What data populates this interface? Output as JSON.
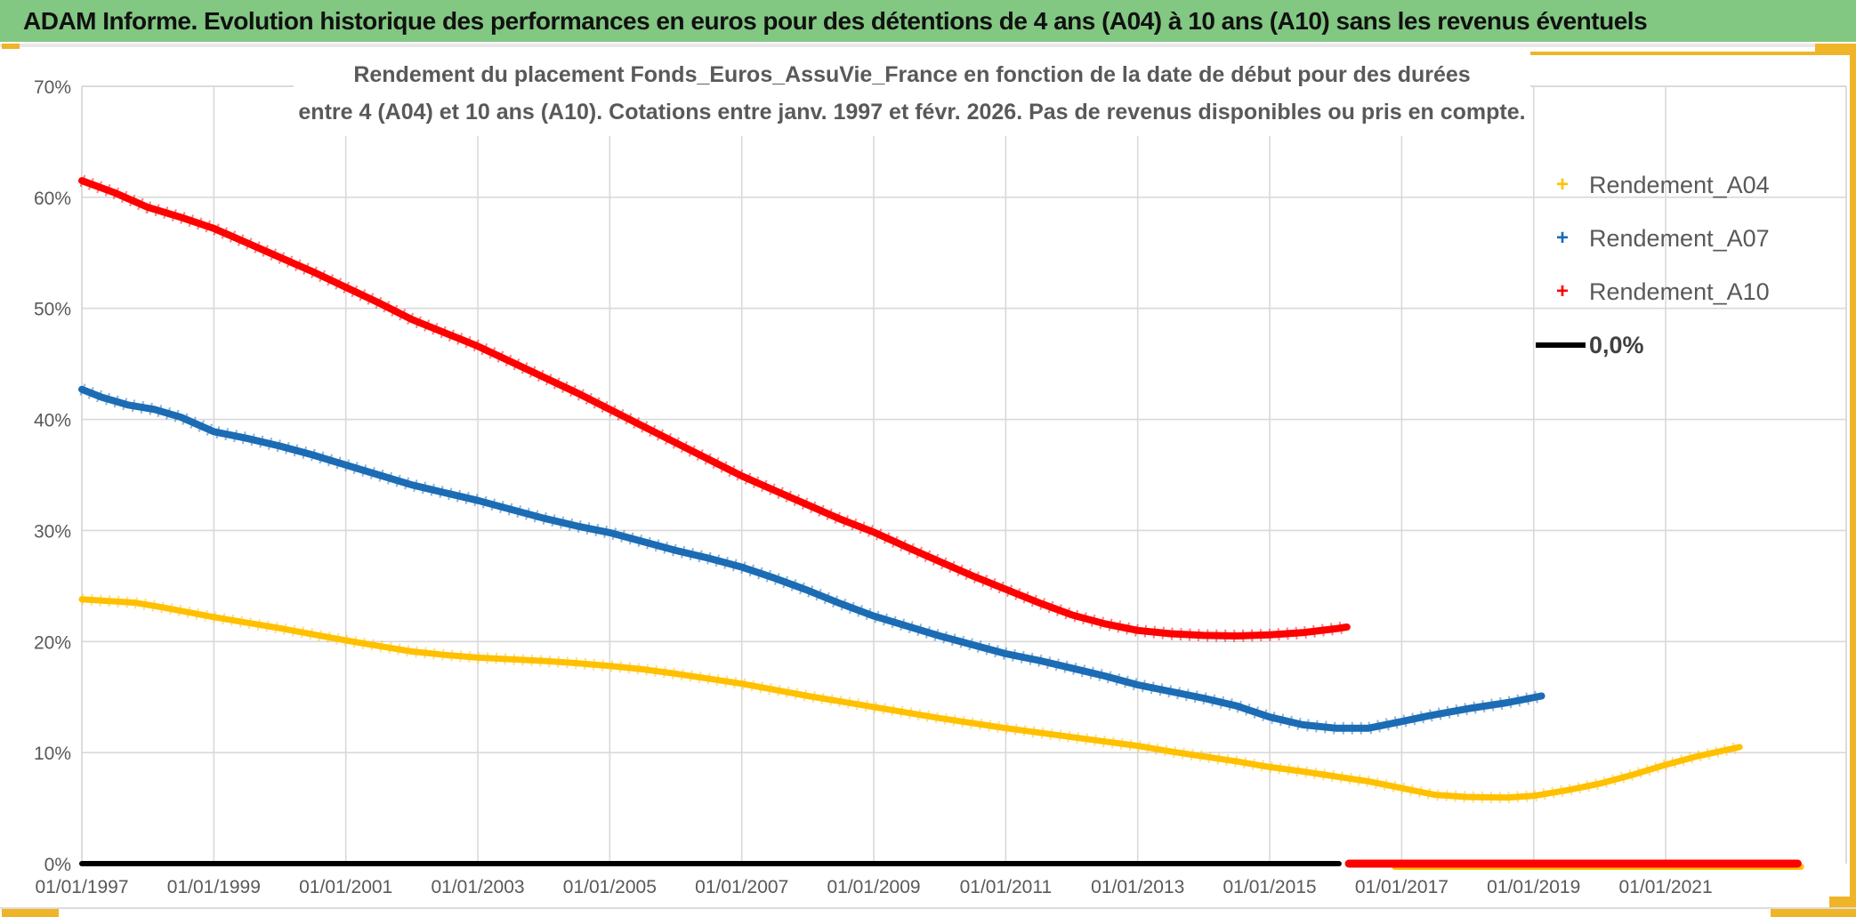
{
  "header": {
    "title": "ADAM Informe. Evolution historique des performances en euros pour des détentions de 4 ans (A04) à 10 ans (A10) sans les revenus éventuels",
    "bar_color": "#82C782"
  },
  "chart": {
    "title_line1": "Rendement du placement Fonds_Euros_AssuVie_France en fonction de la date de début pour des durées",
    "title_line2": "entre 4 (A04) et 10 ans (A10). Cotations entre janv. 1997 et févr. 2026. Pas de revenus disponibles ou pris en compte.",
    "title_color": "#595959"
  },
  "legend": {
    "items": [
      {
        "label": "Rendement_A04",
        "marker": "+",
        "color": "#FFC000"
      },
      {
        "label": "Rendement_A07",
        "marker": "+",
        "color": "#1B6CB5"
      },
      {
        "label": "Rendement_A10",
        "marker": "+",
        "color": "#FE0000"
      },
      {
        "label": "0,0%",
        "marker": "line",
        "color": "#000000"
      }
    ]
  },
  "colors": {
    "grid": "#D9D9D9",
    "axis_text": "#595959",
    "sheet_accent_gold": "#F0B429",
    "series_a04": "#FFC000",
    "series_a07": "#1B6CB5",
    "series_a10": "#FE0000",
    "zero_line": "#000000"
  },
  "chart_data": {
    "type": "line",
    "title": "Rendement du placement Fonds_Euros_AssuVie_France en fonction de la date de début pour des durées entre 4 (A04) et 10 ans (A10). Cotations entre janv. 1997 et févr. 2026. Pas de revenus disponibles ou pris en compte.",
    "grid": true,
    "legend_position": "right",
    "x_axis": {
      "min": 1997.0,
      "max": 2023.7,
      "ticks": [
        {
          "year": 1997,
          "label": "01/01/1997"
        },
        {
          "year": 1999,
          "label": "01/01/1999"
        },
        {
          "year": 2001,
          "label": "01/01/2001"
        },
        {
          "year": 2003,
          "label": "01/01/2003"
        },
        {
          "year": 2005,
          "label": "01/01/2005"
        },
        {
          "year": 2007,
          "label": "01/01/2007"
        },
        {
          "year": 2009,
          "label": "01/01/2009"
        },
        {
          "year": 2011,
          "label": "01/01/2011"
        },
        {
          "year": 2013,
          "label": "01/01/2013"
        },
        {
          "year": 2015,
          "label": "01/01/2015"
        },
        {
          "year": 2017,
          "label": "01/01/2017"
        },
        {
          "year": 2019,
          "label": "01/01/2019"
        },
        {
          "year": 2021,
          "label": "01/01/2021"
        }
      ]
    },
    "y_axis": {
      "min": 0,
      "max": 70,
      "unit": "%",
      "ticks": [
        {
          "value": 0,
          "label": "0%"
        },
        {
          "value": 10,
          "label": "10%"
        },
        {
          "value": 20,
          "label": "20%"
        },
        {
          "value": 30,
          "label": "30%"
        },
        {
          "value": 40,
          "label": "40%"
        },
        {
          "value": 50,
          "label": "50%"
        },
        {
          "value": 60,
          "label": "60%"
        },
        {
          "value": 70,
          "label": "70%"
        }
      ]
    },
    "series": [
      {
        "name": "Rendement_A04",
        "color": "#FFC000",
        "width": 7,
        "points": [
          [
            1997.0,
            23.8
          ],
          [
            1997.4,
            23.65
          ],
          [
            1997.8,
            23.5
          ],
          [
            1998.2,
            23.1
          ],
          [
            1998.6,
            22.65
          ],
          [
            1999.0,
            22.2
          ],
          [
            1999.5,
            21.7
          ],
          [
            2000.0,
            21.2
          ],
          [
            2000.5,
            20.65
          ],
          [
            2001.0,
            20.1
          ],
          [
            2001.5,
            19.6
          ],
          [
            2002.0,
            19.1
          ],
          [
            2002.5,
            18.8
          ],
          [
            2003.0,
            18.55
          ],
          [
            2003.5,
            18.4
          ],
          [
            2004.0,
            18.25
          ],
          [
            2004.5,
            18.05
          ],
          [
            2005.0,
            17.8
          ],
          [
            2005.5,
            17.5
          ],
          [
            2006.0,
            17.1
          ],
          [
            2006.5,
            16.65
          ],
          [
            2007.0,
            16.2
          ],
          [
            2007.5,
            15.65
          ],
          [
            2008.0,
            15.1
          ],
          [
            2008.5,
            14.6
          ],
          [
            2009.0,
            14.1
          ],
          [
            2009.5,
            13.6
          ],
          [
            2010.0,
            13.1
          ],
          [
            2010.5,
            12.65
          ],
          [
            2011.0,
            12.2
          ],
          [
            2011.5,
            11.8
          ],
          [
            2012.0,
            11.4
          ],
          [
            2012.5,
            11.0
          ],
          [
            2013.0,
            10.6
          ],
          [
            2013.5,
            10.1
          ],
          [
            2014.0,
            9.65
          ],
          [
            2014.5,
            9.2
          ],
          [
            2015.0,
            8.7
          ],
          [
            2015.5,
            8.3
          ],
          [
            2016.0,
            7.85
          ],
          [
            2016.5,
            7.4
          ],
          [
            2017.0,
            6.8
          ],
          [
            2017.5,
            6.2
          ],
          [
            2018.0,
            6.0
          ],
          [
            2018.6,
            5.95
          ],
          [
            2019.0,
            6.1
          ],
          [
            2019.5,
            6.6
          ],
          [
            2020.0,
            7.2
          ],
          [
            2020.5,
            8.0
          ],
          [
            2021.0,
            8.9
          ],
          [
            2021.5,
            9.7
          ],
          [
            2022.12,
            10.5
          ]
        ]
      },
      {
        "name": "Rendement_A07",
        "color": "#1B6CB5",
        "width": 8,
        "points": [
          [
            1997.0,
            42.7
          ],
          [
            1997.3,
            42.0
          ],
          [
            1997.7,
            41.3
          ],
          [
            1998.1,
            40.9
          ],
          [
            1998.5,
            40.2
          ],
          [
            1999.0,
            38.9
          ],
          [
            1999.5,
            38.3
          ],
          [
            2000.0,
            37.6
          ],
          [
            2000.5,
            36.8
          ],
          [
            2001.0,
            35.9
          ],
          [
            2001.5,
            35.0
          ],
          [
            2002.0,
            34.1
          ],
          [
            2002.5,
            33.4
          ],
          [
            2003.0,
            32.7
          ],
          [
            2003.5,
            31.9
          ],
          [
            2004.0,
            31.1
          ],
          [
            2004.5,
            30.4
          ],
          [
            2005.0,
            29.8
          ],
          [
            2005.5,
            29.0
          ],
          [
            2006.0,
            28.2
          ],
          [
            2006.5,
            27.5
          ],
          [
            2007.0,
            26.7
          ],
          [
            2007.5,
            25.7
          ],
          [
            2008.0,
            24.6
          ],
          [
            2008.5,
            23.4
          ],
          [
            2009.0,
            22.3
          ],
          [
            2009.5,
            21.4
          ],
          [
            2010.0,
            20.5
          ],
          [
            2010.5,
            19.7
          ],
          [
            2011.0,
            18.9
          ],
          [
            2011.5,
            18.3
          ],
          [
            2012.0,
            17.6
          ],
          [
            2012.5,
            16.9
          ],
          [
            2013.0,
            16.1
          ],
          [
            2013.5,
            15.5
          ],
          [
            2014.0,
            14.9
          ],
          [
            2014.5,
            14.2
          ],
          [
            2015.0,
            13.2
          ],
          [
            2015.5,
            12.5
          ],
          [
            2016.0,
            12.2
          ],
          [
            2016.5,
            12.2
          ],
          [
            2017.0,
            12.8
          ],
          [
            2017.4,
            13.3
          ],
          [
            2018.0,
            13.95
          ],
          [
            2018.6,
            14.5
          ],
          [
            2019.12,
            15.1
          ]
        ]
      },
      {
        "name": "Rendement_A10",
        "color": "#FE0000",
        "width": 8,
        "points": [
          [
            1997.0,
            61.5
          ],
          [
            1997.5,
            60.4
          ],
          [
            1998.0,
            59.1
          ],
          [
            1998.5,
            58.2
          ],
          [
            1999.0,
            57.2
          ],
          [
            1999.5,
            55.9
          ],
          [
            2000.0,
            54.6
          ],
          [
            2000.5,
            53.3
          ],
          [
            2001.0,
            51.9
          ],
          [
            2001.5,
            50.5
          ],
          [
            2002.0,
            49.0
          ],
          [
            2002.5,
            47.8
          ],
          [
            2003.0,
            46.6
          ],
          [
            2003.5,
            45.2
          ],
          [
            2004.0,
            43.8
          ],
          [
            2004.5,
            42.4
          ],
          [
            2005.0,
            40.9
          ],
          [
            2005.5,
            39.4
          ],
          [
            2006.0,
            37.9
          ],
          [
            2006.5,
            36.4
          ],
          [
            2007.0,
            34.9
          ],
          [
            2007.5,
            33.6
          ],
          [
            2008.0,
            32.3
          ],
          [
            2008.5,
            31.0
          ],
          [
            2009.0,
            29.85
          ],
          [
            2009.5,
            28.5
          ],
          [
            2010.0,
            27.2
          ],
          [
            2010.5,
            25.9
          ],
          [
            2011.0,
            24.7
          ],
          [
            2011.5,
            23.5
          ],
          [
            2012.0,
            22.4
          ],
          [
            2012.5,
            21.6
          ],
          [
            2013.0,
            21.0
          ],
          [
            2013.5,
            20.7
          ],
          [
            2014.0,
            20.55
          ],
          [
            2014.5,
            20.5
          ],
          [
            2015.0,
            20.6
          ],
          [
            2015.5,
            20.8
          ],
          [
            2016.0,
            21.15
          ],
          [
            2016.17,
            21.3
          ]
        ]
      },
      {
        "name": "0,0%",
        "color": "#000000",
        "width": 6,
        "points": [
          [
            1997.0,
            0
          ],
          [
            2016.05,
            0
          ]
        ]
      }
    ],
    "zero_tails": [
      {
        "name": "Rendement_A04_zero",
        "color": "#FFC000",
        "from": 2016.9,
        "to": 2023.05,
        "value": 0,
        "offset": 3.5,
        "width": 7
      },
      {
        "name": "Rendement_A10_zero",
        "color": "#FE0000",
        "from": 2016.2,
        "to": 2023.0,
        "value": 0,
        "offset": 0,
        "width": 9
      }
    ]
  }
}
